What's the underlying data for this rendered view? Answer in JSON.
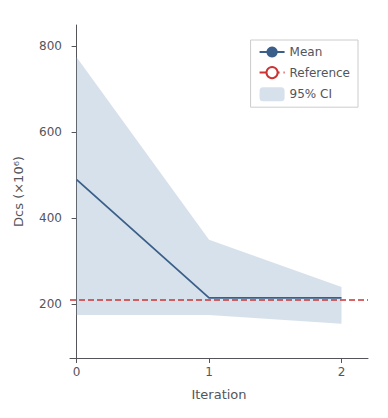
{
  "chart_data": {
    "type": "line",
    "xlabel": "Iteration",
    "ylabel": "Dcs (×10⁶)",
    "x": [
      0,
      1,
      2
    ],
    "series": [
      {
        "name": "Mean",
        "type": "line",
        "color": "#3a5f8a",
        "line_style": "solid",
        "values": [
          490,
          215,
          215
        ]
      },
      {
        "name": "Reference",
        "type": "hline",
        "color": "#cc3333",
        "line_style": "dashed",
        "value": 210
      },
      {
        "name": "95% CI",
        "type": "band",
        "color": "#b0c4d8",
        "lower": [
          175,
          175,
          155
        ],
        "upper": [
          775,
          350,
          240
        ]
      }
    ],
    "xlim": [
      -0.05,
      2.2
    ],
    "xticks": [
      0,
      1,
      2
    ],
    "ylim": [
      75,
      850
    ],
    "yticks": [
      200,
      400,
      600,
      800
    ],
    "grid": false,
    "legend": "upper right"
  }
}
